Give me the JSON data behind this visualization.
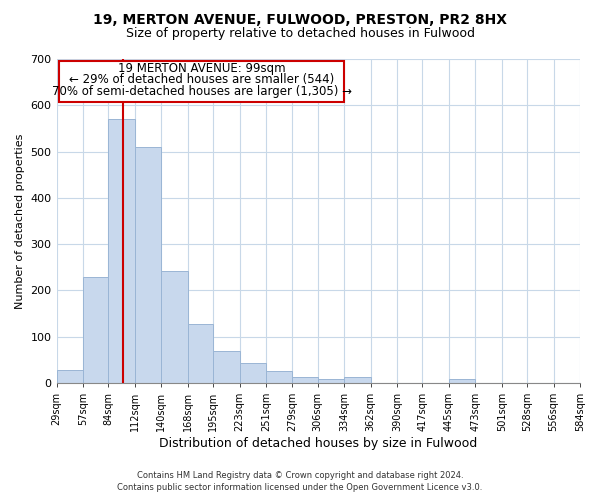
{
  "title": "19, MERTON AVENUE, FULWOOD, PRESTON, PR2 8HX",
  "subtitle": "Size of property relative to detached houses in Fulwood",
  "xlabel": "Distribution of detached houses by size in Fulwood",
  "ylabel": "Number of detached properties",
  "bar_color": "#c8d8ed",
  "bar_edge_color": "#9ab5d5",
  "vline_x": 99,
  "vline_color": "#cc0000",
  "annotation_line1": "19 MERTON AVENUE: 99sqm",
  "annotation_line2": "← 29% of detached houses are smaller (544)",
  "annotation_line3": "70% of semi-detached houses are larger (1,305) →",
  "annotation_box_color": "#ffffff",
  "annotation_box_edge": "#cc0000",
  "bins": [
    29,
    57,
    84,
    112,
    140,
    168,
    195,
    223,
    251,
    279,
    306,
    334,
    362,
    390,
    417,
    445,
    473,
    501,
    528,
    556,
    584
  ],
  "counts": [
    28,
    230,
    570,
    510,
    242,
    127,
    70,
    43,
    27,
    13,
    9,
    14,
    1,
    0,
    0,
    8,
    0,
    0,
    0,
    0,
    5
  ],
  "ylim": [
    0,
    700
  ],
  "yticks": [
    0,
    100,
    200,
    300,
    400,
    500,
    600,
    700
  ],
  "footer_line1": "Contains HM Land Registry data © Crown copyright and database right 2024.",
  "footer_line2": "Contains public sector information licensed under the Open Government Licence v3.0.",
  "bg_color": "#ffffff",
  "grid_color": "#c8d8e8"
}
